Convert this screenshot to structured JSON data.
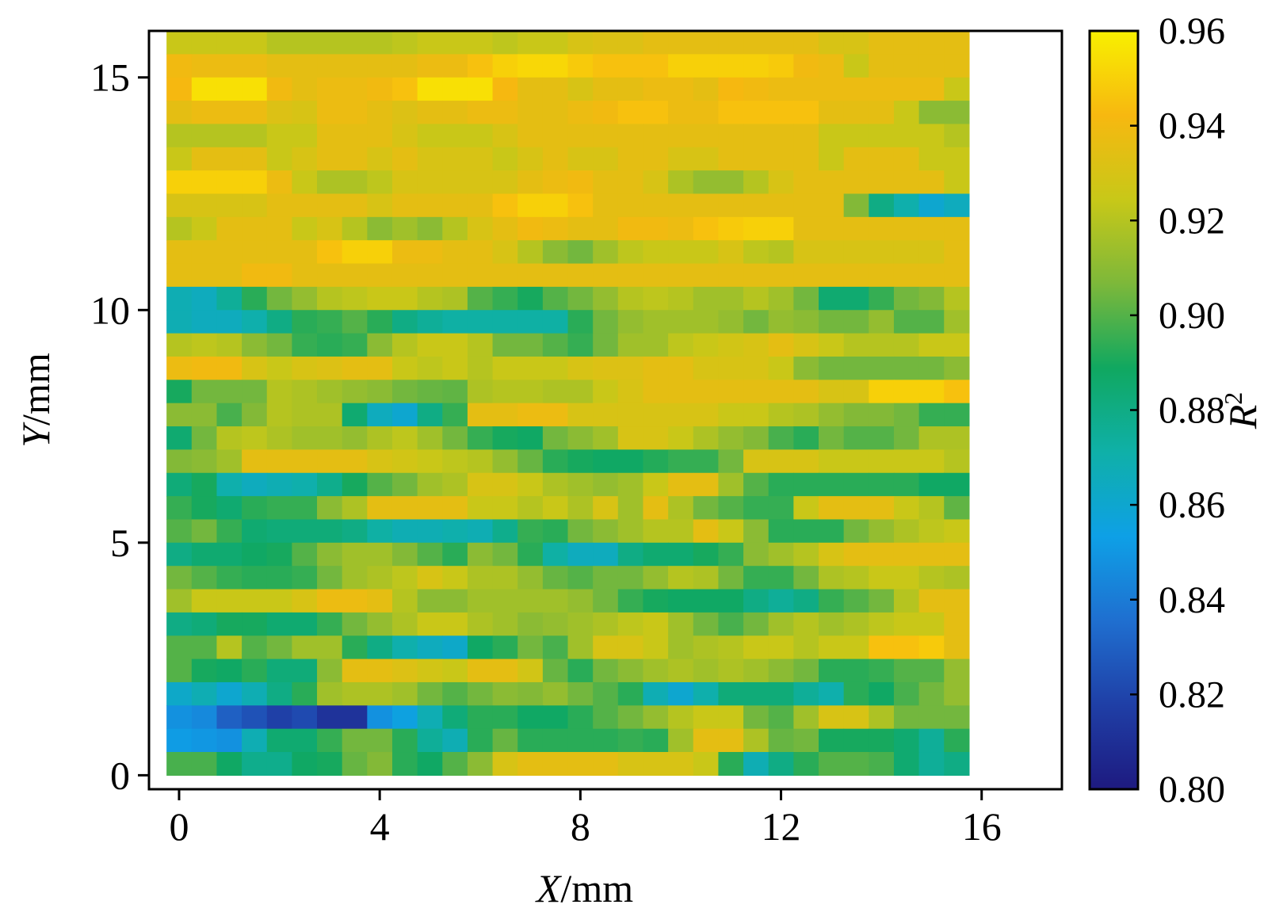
{
  "chart_data": {
    "type": "heatmap",
    "x_label_var": "X",
    "x_label_unit": "/mm",
    "y_label_var": "Y",
    "y_label_unit": "/mm",
    "colorbar_label_var": "R",
    "colorbar_label_sup": "2",
    "x_range": [
      -0.6,
      17.6
    ],
    "y_range": [
      -0.3,
      16.0
    ],
    "x_ticks": [
      0,
      4,
      8,
      12,
      16
    ],
    "y_ticks": [
      0,
      5,
      10,
      15
    ],
    "color_range": [
      0.8,
      0.96
    ],
    "colorbar_ticks": [
      "0.80",
      "0.82",
      "0.84",
      "0.86",
      "0.88",
      "0.90",
      "0.92",
      "0.94",
      "0.96"
    ],
    "colormap": [
      "#1e1a80",
      "#1f3fa6",
      "#1f6fd0",
      "#0ea0e6",
      "#0fb0a8",
      "#10a860",
      "#7db83a",
      "#c8c818",
      "#f7b810",
      "#f8f000"
    ],
    "grid": false,
    "x_start": -0.25,
    "x_step": 0.5,
    "y_start": 0,
    "y_step": 0.5,
    "rows_top_to_bottom": [
      [
        0.925,
        0.925,
        0.925,
        0.925,
        0.92,
        0.92,
        0.92,
        0.92,
        0.92,
        0.922,
        0.925,
        0.925,
        0.925,
        0.922,
        0.925,
        0.925,
        0.93,
        0.932,
        0.932,
        0.935,
        0.935,
        0.935,
        0.935,
        0.935,
        0.935,
        0.935,
        0.93,
        0.93,
        0.935,
        0.935,
        0.935,
        0.935
      ],
      [
        0.94,
        0.938,
        0.938,
        0.938,
        0.935,
        0.935,
        0.935,
        0.935,
        0.935,
        0.935,
        0.938,
        0.938,
        0.945,
        0.95,
        0.952,
        0.952,
        0.948,
        0.945,
        0.945,
        0.945,
        0.95,
        0.95,
        0.95,
        0.95,
        0.948,
        0.94,
        0.938,
        0.925,
        0.935,
        0.935,
        0.935,
        0.935
      ],
      [
        0.942,
        0.955,
        0.955,
        0.955,
        0.94,
        0.935,
        0.938,
        0.938,
        0.94,
        0.945,
        0.955,
        0.955,
        0.955,
        0.942,
        0.935,
        0.935,
        0.93,
        0.935,
        0.935,
        0.938,
        0.938,
        0.935,
        0.942,
        0.94,
        0.938,
        0.938,
        0.938,
        0.938,
        0.938,
        0.938,
        0.938,
        0.925
      ],
      [
        0.935,
        0.938,
        0.938,
        0.938,
        0.932,
        0.93,
        0.938,
        0.938,
        0.935,
        0.932,
        0.935,
        0.935,
        0.938,
        0.938,
        0.935,
        0.935,
        0.938,
        0.94,
        0.945,
        0.945,
        0.938,
        0.938,
        0.945,
        0.945,
        0.945,
        0.945,
        0.935,
        0.935,
        0.935,
        0.925,
        0.91,
        0.91
      ],
      [
        0.92,
        0.92,
        0.92,
        0.92,
        0.925,
        0.925,
        0.935,
        0.935,
        0.935,
        0.93,
        0.925,
        0.925,
        0.925,
        0.93,
        0.935,
        0.935,
        0.935,
        0.935,
        0.935,
        0.935,
        0.935,
        0.935,
        0.935,
        0.935,
        0.935,
        0.935,
        0.925,
        0.925,
        0.925,
        0.925,
        0.925,
        0.92
      ],
      [
        0.925,
        0.935,
        0.935,
        0.935,
        0.925,
        0.93,
        0.935,
        0.935,
        0.93,
        0.935,
        0.93,
        0.93,
        0.93,
        0.925,
        0.93,
        0.935,
        0.93,
        0.93,
        0.935,
        0.935,
        0.93,
        0.93,
        0.935,
        0.935,
        0.935,
        0.935,
        0.925,
        0.935,
        0.935,
        0.935,
        0.925,
        0.925
      ],
      [
        0.95,
        0.95,
        0.95,
        0.95,
        0.938,
        0.925,
        0.918,
        0.918,
        0.922,
        0.93,
        0.93,
        0.93,
        0.93,
        0.93,
        0.935,
        0.938,
        0.94,
        0.935,
        0.935,
        0.93,
        0.918,
        0.912,
        0.912,
        0.92,
        0.93,
        0.935,
        0.935,
        0.935,
        0.935,
        0.935,
        0.935,
        0.925
      ],
      [
        0.93,
        0.93,
        0.93,
        0.93,
        0.935,
        0.935,
        0.935,
        0.935,
        0.93,
        0.935,
        0.935,
        0.935,
        0.935,
        0.945,
        0.95,
        0.95,
        0.945,
        0.935,
        0.935,
        0.935,
        0.935,
        0.935,
        0.935,
        0.935,
        0.935,
        0.935,
        0.935,
        0.908,
        0.88,
        0.87,
        0.86,
        0.865
      ],
      [
        0.92,
        0.925,
        0.935,
        0.935,
        0.935,
        0.925,
        0.93,
        0.92,
        0.91,
        0.915,
        0.91,
        0.92,
        0.93,
        0.935,
        0.94,
        0.938,
        0.935,
        0.935,
        0.94,
        0.94,
        0.938,
        0.945,
        0.948,
        0.95,
        0.95,
        0.935,
        0.935,
        0.935,
        0.935,
        0.935,
        0.935,
        0.935
      ],
      [
        0.935,
        0.935,
        0.935,
        0.935,
        0.935,
        0.935,
        0.945,
        0.95,
        0.95,
        0.938,
        0.938,
        0.935,
        0.935,
        0.93,
        0.92,
        0.91,
        0.905,
        0.915,
        0.922,
        0.925,
        0.925,
        0.925,
        0.93,
        0.922,
        0.92,
        0.93,
        0.93,
        0.93,
        0.93,
        0.93,
        0.93,
        0.935
      ],
      [
        0.935,
        0.935,
        0.935,
        0.94,
        0.94,
        0.935,
        0.935,
        0.935,
        0.935,
        0.935,
        0.935,
        0.935,
        0.935,
        0.935,
        0.935,
        0.935,
        0.935,
        0.935,
        0.935,
        0.935,
        0.935,
        0.935,
        0.935,
        0.935,
        0.935,
        0.935,
        0.935,
        0.935,
        0.935,
        0.935,
        0.935,
        0.935
      ],
      [
        0.868,
        0.865,
        0.875,
        0.893,
        0.905,
        0.912,
        0.92,
        0.922,
        0.925,
        0.925,
        0.92,
        0.918,
        0.9,
        0.895,
        0.89,
        0.9,
        0.905,
        0.912,
        0.92,
        0.922,
        0.92,
        0.915,
        0.915,
        0.92,
        0.915,
        0.905,
        0.885,
        0.885,
        0.895,
        0.905,
        0.908,
        0.92
      ],
      [
        0.868,
        0.865,
        0.865,
        0.87,
        0.88,
        0.893,
        0.895,
        0.9,
        0.893,
        0.88,
        0.875,
        0.872,
        0.872,
        0.872,
        0.872,
        0.872,
        0.893,
        0.905,
        0.912,
        0.915,
        0.915,
        0.915,
        0.912,
        0.905,
        0.912,
        0.91,
        0.905,
        0.905,
        0.912,
        0.9,
        0.9,
        0.915
      ],
      [
        0.92,
        0.922,
        0.92,
        0.91,
        0.905,
        0.895,
        0.893,
        0.895,
        0.91,
        0.92,
        0.925,
        0.925,
        0.92,
        0.905,
        0.905,
        0.9,
        0.895,
        0.905,
        0.915,
        0.915,
        0.922,
        0.925,
        0.928,
        0.93,
        0.935,
        0.93,
        0.925,
        0.92,
        0.92,
        0.92,
        0.925,
        0.925
      ],
      [
        0.938,
        0.94,
        0.94,
        0.93,
        0.925,
        0.93,
        0.932,
        0.935,
        0.935,
        0.925,
        0.922,
        0.925,
        0.92,
        0.925,
        0.925,
        0.925,
        0.93,
        0.932,
        0.932,
        0.935,
        0.935,
        0.93,
        0.93,
        0.93,
        0.925,
        0.91,
        0.905,
        0.905,
        0.905,
        0.905,
        0.905,
        0.91
      ],
      [
        0.89,
        0.905,
        0.905,
        0.905,
        0.92,
        0.918,
        0.915,
        0.912,
        0.91,
        0.905,
        0.903,
        0.902,
        0.918,
        0.92,
        0.92,
        0.918,
        0.918,
        0.925,
        0.93,
        0.935,
        0.935,
        0.935,
        0.935,
        0.935,
        0.935,
        0.935,
        0.93,
        0.93,
        0.95,
        0.95,
        0.95,
        0.945
      ],
      [
        0.91,
        0.91,
        0.898,
        0.908,
        0.92,
        0.918,
        0.918,
        0.885,
        0.865,
        0.86,
        0.88,
        0.895,
        0.935,
        0.935,
        0.938,
        0.938,
        0.93,
        0.93,
        0.93,
        0.93,
        0.93,
        0.93,
        0.925,
        0.925,
        0.92,
        0.918,
        0.912,
        0.908,
        0.908,
        0.905,
        0.895,
        0.895
      ],
      [
        0.885,
        0.905,
        0.92,
        0.922,
        0.918,
        0.915,
        0.915,
        0.912,
        0.918,
        0.922,
        0.915,
        0.905,
        0.895,
        0.89,
        0.888,
        0.905,
        0.91,
        0.915,
        0.93,
        0.93,
        0.925,
        0.918,
        0.912,
        0.908,
        0.898,
        0.893,
        0.905,
        0.9,
        0.9,
        0.905,
        0.918,
        0.918
      ],
      [
        0.908,
        0.91,
        0.915,
        0.935,
        0.935,
        0.935,
        0.935,
        0.935,
        0.93,
        0.928,
        0.925,
        0.922,
        0.92,
        0.912,
        0.903,
        0.893,
        0.89,
        0.888,
        0.888,
        0.892,
        0.895,
        0.895,
        0.905,
        0.93,
        0.93,
        0.93,
        0.925,
        0.925,
        0.925,
        0.925,
        0.925,
        0.92
      ],
      [
        0.883,
        0.89,
        0.87,
        0.865,
        0.868,
        0.87,
        0.878,
        0.89,
        0.9,
        0.905,
        0.915,
        0.918,
        0.93,
        0.93,
        0.925,
        0.918,
        0.915,
        0.912,
        0.915,
        0.925,
        0.935,
        0.935,
        0.915,
        0.9,
        0.893,
        0.893,
        0.893,
        0.893,
        0.893,
        0.893,
        0.888,
        0.888
      ],
      [
        0.895,
        0.89,
        0.885,
        0.893,
        0.895,
        0.895,
        0.91,
        0.918,
        0.935,
        0.935,
        0.935,
        0.935,
        0.925,
        0.925,
        0.92,
        0.925,
        0.918,
        0.93,
        0.915,
        0.935,
        0.918,
        0.905,
        0.9,
        0.895,
        0.895,
        0.925,
        0.935,
        0.935,
        0.935,
        0.925,
        0.92,
        0.902
      ],
      [
        0.9,
        0.905,
        0.895,
        0.885,
        0.883,
        0.883,
        0.883,
        0.88,
        0.872,
        0.868,
        0.868,
        0.87,
        0.868,
        0.878,
        0.895,
        0.893,
        0.905,
        0.91,
        0.915,
        0.92,
        0.92,
        0.935,
        0.925,
        0.91,
        0.893,
        0.893,
        0.893,
        0.905,
        0.912,
        0.918,
        0.922,
        0.925
      ],
      [
        0.88,
        0.885,
        0.885,
        0.888,
        0.89,
        0.9,
        0.91,
        0.915,
        0.915,
        0.908,
        0.9,
        0.893,
        0.91,
        0.905,
        0.893,
        0.872,
        0.865,
        0.865,
        0.88,
        0.885,
        0.885,
        0.89,
        0.895,
        0.91,
        0.915,
        0.92,
        0.93,
        0.935,
        0.935,
        0.935,
        0.935,
        0.935
      ],
      [
        0.905,
        0.9,
        0.895,
        0.893,
        0.893,
        0.895,
        0.905,
        0.915,
        0.918,
        0.922,
        0.93,
        0.925,
        0.918,
        0.918,
        0.912,
        0.903,
        0.9,
        0.905,
        0.905,
        0.912,
        0.92,
        0.918,
        0.905,
        0.895,
        0.895,
        0.905,
        0.918,
        0.92,
        0.925,
        0.925,
        0.92,
        0.918
      ],
      [
        0.915,
        0.925,
        0.925,
        0.925,
        0.925,
        0.93,
        0.938,
        0.938,
        0.935,
        0.92,
        0.91,
        0.91,
        0.915,
        0.915,
        0.915,
        0.915,
        0.912,
        0.905,
        0.895,
        0.89,
        0.888,
        0.888,
        0.888,
        0.88,
        0.875,
        0.88,
        0.895,
        0.9,
        0.905,
        0.92,
        0.935,
        0.935
      ],
      [
        0.88,
        0.883,
        0.89,
        0.89,
        0.885,
        0.885,
        0.895,
        0.905,
        0.912,
        0.918,
        0.925,
        0.925,
        0.918,
        0.915,
        0.91,
        0.912,
        0.915,
        0.918,
        0.922,
        0.925,
        0.915,
        0.905,
        0.898,
        0.905,
        0.915,
        0.92,
        0.915,
        0.918,
        0.922,
        0.925,
        0.925,
        0.935
      ],
      [
        0.9,
        0.9,
        0.92,
        0.9,
        0.905,
        0.915,
        0.915,
        0.893,
        0.88,
        0.87,
        0.865,
        0.862,
        0.888,
        0.893,
        0.905,
        0.898,
        0.915,
        0.93,
        0.93,
        0.925,
        0.915,
        0.918,
        0.92,
        0.925,
        0.925,
        0.92,
        0.925,
        0.925,
        0.945,
        0.945,
        0.948,
        0.935
      ],
      [
        0.9,
        0.89,
        0.888,
        0.893,
        0.883,
        0.883,
        0.91,
        0.935,
        0.935,
        0.932,
        0.928,
        0.925,
        0.935,
        0.935,
        0.928,
        0.903,
        0.893,
        0.905,
        0.91,
        0.915,
        0.918,
        0.915,
        0.918,
        0.915,
        0.91,
        0.905,
        0.893,
        0.893,
        0.895,
        0.9,
        0.9,
        0.912
      ],
      [
        0.862,
        0.868,
        0.86,
        0.868,
        0.88,
        0.893,
        0.915,
        0.918,
        0.918,
        0.915,
        0.905,
        0.9,
        0.905,
        0.91,
        0.908,
        0.912,
        0.905,
        0.9,
        0.893,
        0.868,
        0.86,
        0.87,
        0.883,
        0.883,
        0.883,
        0.875,
        0.87,
        0.893,
        0.888,
        0.898,
        0.905,
        0.912
      ],
      [
        0.848,
        0.845,
        0.83,
        0.825,
        0.818,
        0.822,
        0.812,
        0.812,
        0.848,
        0.855,
        0.868,
        0.883,
        0.893,
        0.893,
        0.888,
        0.888,
        0.893,
        0.9,
        0.905,
        0.912,
        0.92,
        0.925,
        0.925,
        0.905,
        0.9,
        0.915,
        0.93,
        0.93,
        0.918,
        0.905,
        0.905,
        0.905
      ],
      [
        0.852,
        0.85,
        0.848,
        0.868,
        0.885,
        0.885,
        0.895,
        0.905,
        0.905,
        0.893,
        0.875,
        0.868,
        0.893,
        0.903,
        0.893,
        0.893,
        0.893,
        0.893,
        0.895,
        0.893,
        0.915,
        0.935,
        0.935,
        0.918,
        0.903,
        0.905,
        0.89,
        0.89,
        0.89,
        0.885,
        0.875,
        0.893
      ],
      [
        0.898,
        0.898,
        0.888,
        0.878,
        0.878,
        0.888,
        0.89,
        0.903,
        0.908,
        0.893,
        0.888,
        0.9,
        0.91,
        0.93,
        0.935,
        0.935,
        0.935,
        0.935,
        0.93,
        0.93,
        0.93,
        0.925,
        0.893,
        0.868,
        0.88,
        0.893,
        0.9,
        0.9,
        0.898,
        0.885,
        0.875,
        0.88
      ]
    ]
  }
}
